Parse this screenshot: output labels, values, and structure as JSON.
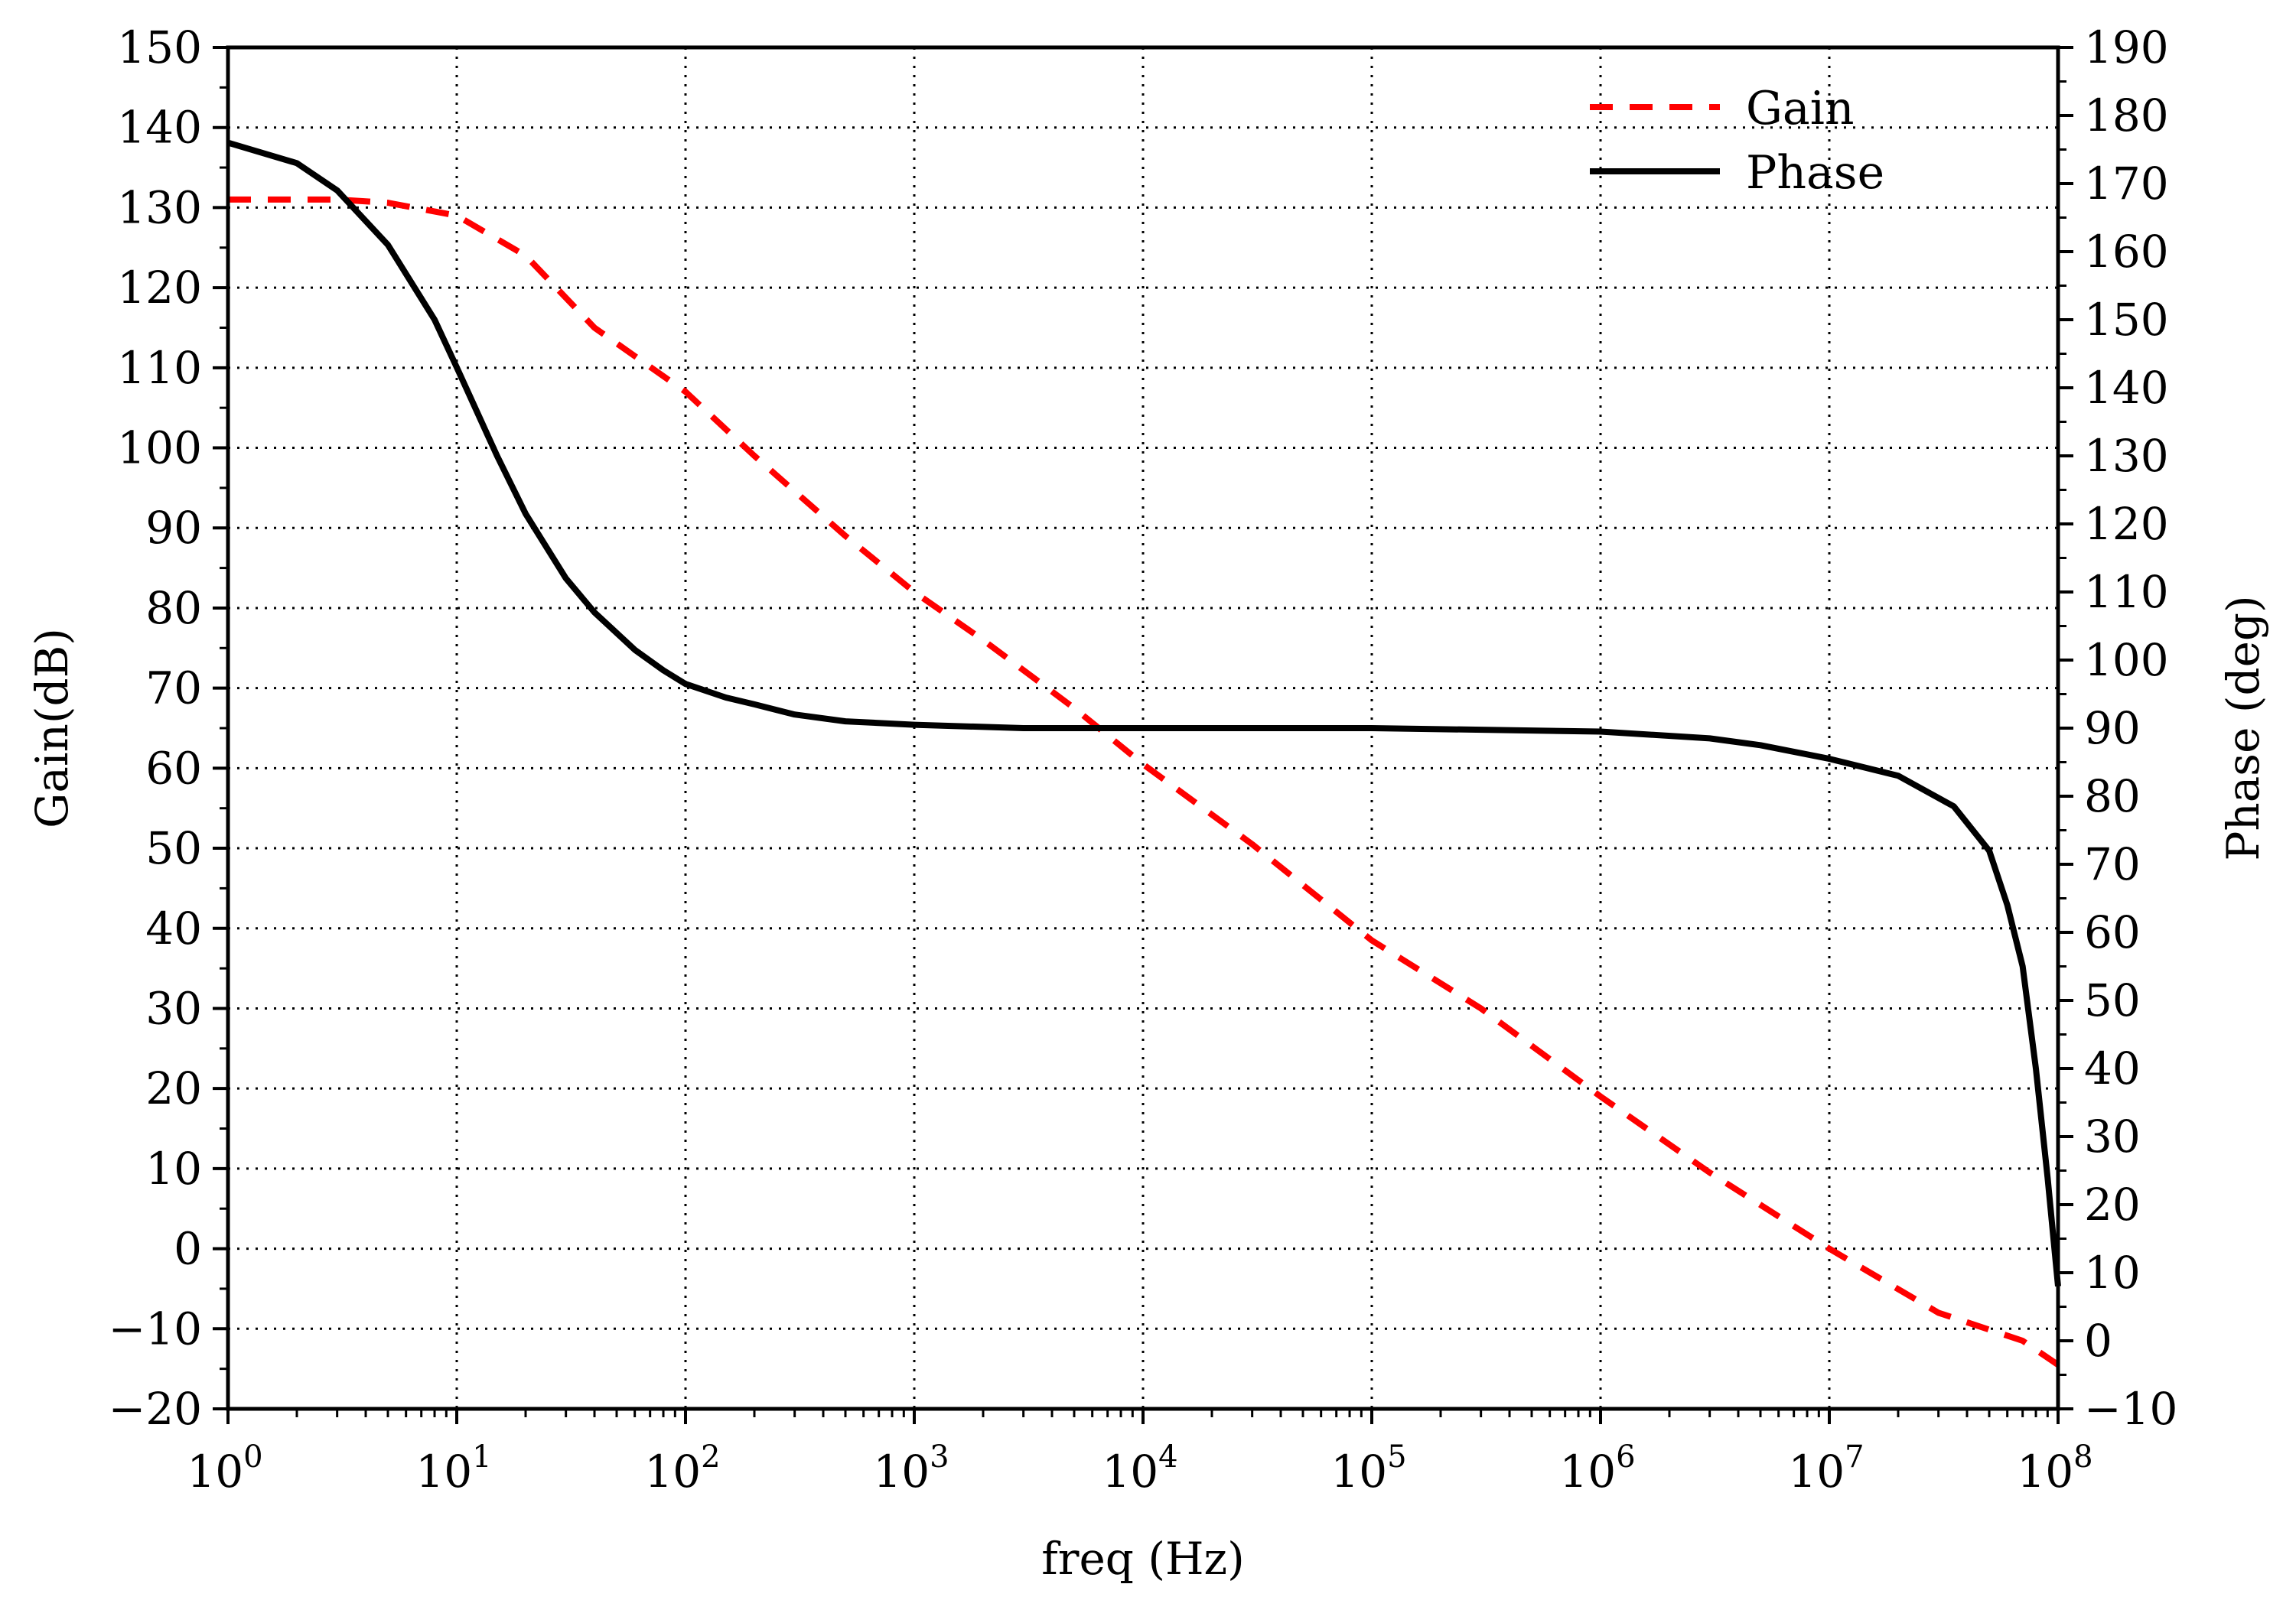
{
  "chart_data": {
    "type": "line",
    "xlabel": "freq (Hz)",
    "ylabel_left": "Gain(dB)",
    "ylabel_right": "Phase (deg)",
    "x_scale": "log",
    "xlim": [
      1,
      100000000
    ],
    "ylim_left": [
      -20,
      150
    ],
    "ylim_right": [
      -10,
      190
    ],
    "grid": true,
    "legend_position": "top-right",
    "x_ticks": [
      {
        "base": "10",
        "exp": "0"
      },
      {
        "base": "10",
        "exp": "1"
      },
      {
        "base": "10",
        "exp": "2"
      },
      {
        "base": "10",
        "exp": "3"
      },
      {
        "base": "10",
        "exp": "4"
      },
      {
        "base": "10",
        "exp": "5"
      },
      {
        "base": "10",
        "exp": "6"
      },
      {
        "base": "10",
        "exp": "7"
      },
      {
        "base": "10",
        "exp": "8"
      }
    ],
    "y_ticks_left": [
      "150",
      "140",
      "130",
      "120",
      "110",
      "100",
      "90",
      "80",
      "70",
      "60",
      "50",
      "40",
      "30",
      "20",
      "10",
      "0",
      "−10",
      "−20"
    ],
    "y_ticks_right": [
      "190",
      "180",
      "170",
      "160",
      "150",
      "140",
      "130",
      "120",
      "110",
      "100",
      "90",
      "80",
      "70",
      "60",
      "50",
      "40",
      "30",
      "20",
      "10",
      "0",
      "−10"
    ],
    "series": [
      {
        "name": "Gain",
        "axis": "left",
        "color": "#ff0000",
        "style": "dashed",
        "x": [
          1,
          2,
          3,
          5,
          10,
          20,
          40,
          100,
          200,
          500,
          1000,
          2000,
          5000,
          10000,
          30000,
          100000,
          300000,
          1000000,
          3000000,
          10000000,
          30000000,
          70000000,
          100000000
        ],
        "y": [
          131,
          131,
          131,
          130.6,
          129,
          124,
          115,
          107,
          99,
          89,
          82,
          76,
          67.5,
          60.5,
          50.5,
          38.5,
          30,
          19,
          9.5,
          0,
          -8,
          -11.5,
          -14.5
        ]
      },
      {
        "name": "Phase",
        "axis": "right",
        "color": "#000000",
        "style": "solid",
        "x": [
          1,
          2,
          3,
          5,
          8,
          10,
          15,
          20,
          30,
          40,
          60,
          80,
          100,
          150,
          200,
          300,
          500,
          1000,
          3000,
          10000,
          100000,
          1000000,
          3000000,
          5000000,
          10000000,
          20000000,
          35000000,
          50000000,
          60000000,
          70000000,
          80000000,
          90000000,
          100000000
        ],
        "y": [
          176,
          173,
          169,
          161,
          150,
          143,
          130,
          121.5,
          112,
          107,
          101.5,
          98.5,
          96.5,
          94.5,
          93.5,
          92,
          91,
          90.5,
          90,
          90,
          90,
          89.5,
          88.5,
          87.5,
          85.5,
          83,
          78.5,
          72,
          64,
          55,
          40,
          24,
          8
        ]
      }
    ]
  }
}
